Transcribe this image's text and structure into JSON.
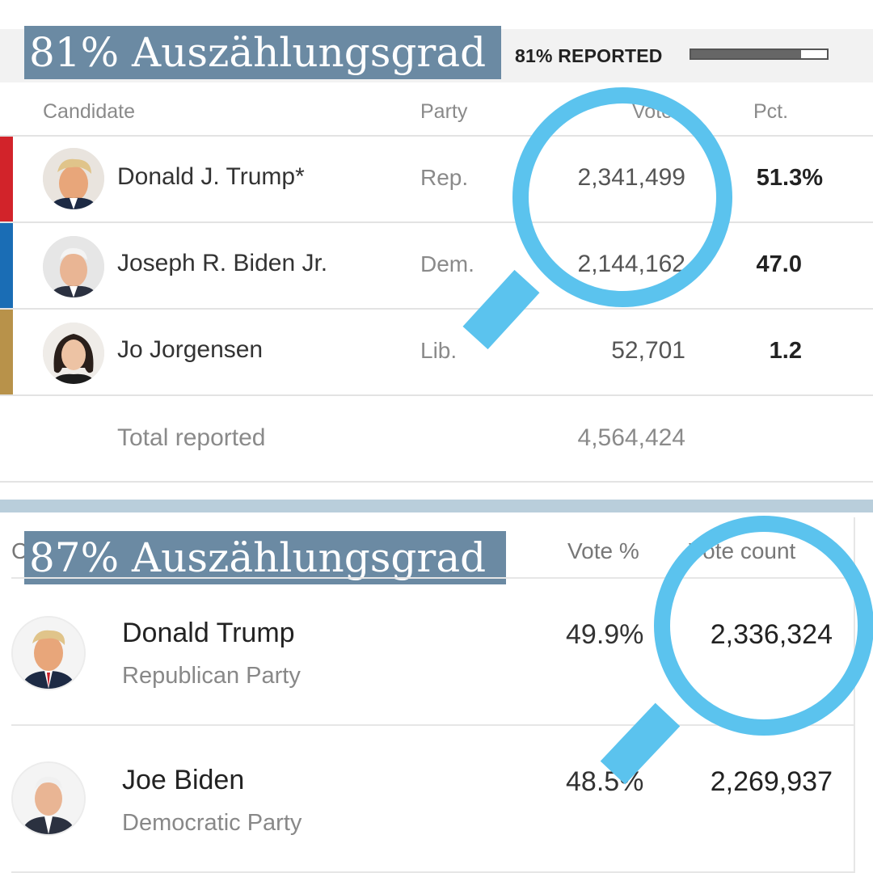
{
  "top": {
    "banner": "81% Auszählungsgrad",
    "reported_label": "81% REPORTED",
    "reported_fraction": 0.81,
    "headers": {
      "candidate": "Candidate",
      "party": "Party",
      "votes": "Votes",
      "pct": "Pct."
    },
    "rows": [
      {
        "name": "Donald J. Trump*",
        "party": "Rep.",
        "votes": "2,341,499",
        "pct": "51.3%",
        "color": "#d2232a",
        "icon": "portrait-trump-icon"
      },
      {
        "name": "Joseph R. Biden Jr.",
        "party": "Dem.",
        "votes": "2,144,162",
        "pct": "47.0",
        "color": "#1a6db5",
        "icon": "portrait-biden-icon"
      },
      {
        "name": "Jo Jorgensen",
        "party": "Lib.",
        "votes": "52,701",
        "pct": "1.2",
        "color": "#b8924a",
        "icon": "portrait-jorgensen-icon"
      }
    ],
    "total_label": "Total reported",
    "total_votes": "4,564,424"
  },
  "bottom": {
    "banner": "87% Auszählungsgrad",
    "header_partial": "C",
    "headers": {
      "vote_pct": "Vote %",
      "vote_count": "Vote count"
    },
    "rows": [
      {
        "name": "Donald Trump",
        "party": "Republican Party",
        "pct": "49.9%",
        "votes": "2,336,324",
        "icon": "portrait-trump-icon"
      },
      {
        "name": "Joe Biden",
        "party": "Democratic Party",
        "pct": "48.5%",
        "votes": "2,269,937",
        "icon": "portrait-biden-icon"
      }
    ]
  },
  "colors": {
    "banner": "#6b8aa3",
    "magnifier": "#5bc3ee",
    "divider": "#b9cedb"
  }
}
